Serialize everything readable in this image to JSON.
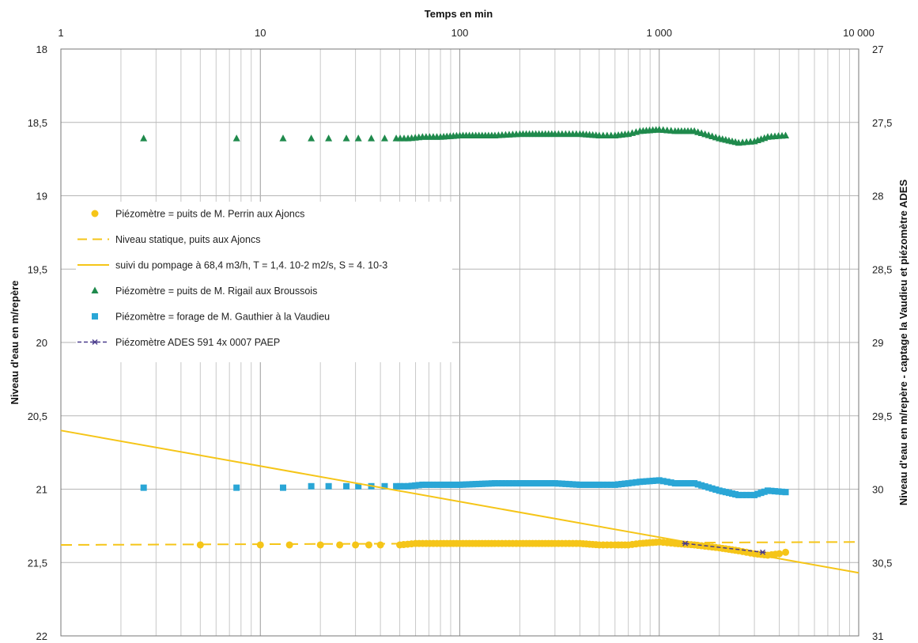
{
  "chart_data": {
    "type": "scatter",
    "title": "",
    "xlabel": "Temps en min",
    "ylabel_left": "Niveau d'eau en m/repère",
    "ylabel_right": "Niveau d'eau en m/repère - captage la Vaudieu et piézomètre ADES",
    "x_scale": "log",
    "xlim": [
      1,
      10000
    ],
    "x_ticks": [
      "1",
      "10",
      "100",
      "1 000",
      "10 000"
    ],
    "ylim_left": [
      22,
      18
    ],
    "y_ticks_left": [
      "18",
      "18,5",
      "19",
      "19,5",
      "20",
      "20,5",
      "21",
      "21,5",
      "22"
    ],
    "ylim_right": [
      31,
      27
    ],
    "y_ticks_right": [
      "27",
      "27,5",
      "28",
      "28,5",
      "29",
      "29,5",
      "30",
      "30,5",
      "31"
    ],
    "y_inverted": true,
    "grid": true,
    "legend_position": "left",
    "colors": {
      "perrin": "#f5c518",
      "static": "#f5c518",
      "fit": "#f5c518",
      "rigail": "#1f8a4c",
      "gauthier": "#2aa6d6",
      "ades": "#4a3c8c"
    },
    "series": [
      {
        "key": "perrin",
        "name": "Piézomètre = puits de M. Perrin aux Ajoncs",
        "marker": "circle",
        "axis": "left",
        "points": [
          [
            5,
            21.38
          ],
          [
            10,
            21.38
          ],
          [
            14,
            21.38
          ],
          [
            20,
            21.38
          ],
          [
            25,
            21.38
          ],
          [
            30,
            21.38
          ],
          [
            35,
            21.38
          ],
          [
            40,
            21.38
          ],
          [
            50,
            21.38
          ],
          [
            60,
            21.37
          ],
          [
            80,
            21.37
          ],
          [
            100,
            21.37
          ],
          [
            150,
            21.37
          ],
          [
            200,
            21.37
          ],
          [
            300,
            21.37
          ],
          [
            400,
            21.37
          ],
          [
            500,
            21.38
          ],
          [
            600,
            21.38
          ],
          [
            700,
            21.38
          ],
          [
            800,
            21.37
          ],
          [
            1000,
            21.36
          ],
          [
            1200,
            21.37
          ],
          [
            1500,
            21.38
          ],
          [
            2000,
            21.4
          ],
          [
            2500,
            21.42
          ],
          [
            3000,
            21.44
          ],
          [
            3500,
            21.45
          ],
          [
            4000,
            21.44
          ],
          [
            4300,
            21.43
          ]
        ]
      },
      {
        "key": "static",
        "name": "Niveau statique, puits aux Ajoncs",
        "marker": "dashed-line",
        "axis": "left",
        "points": [
          [
            1,
            21.38
          ],
          [
            10000,
            21.36
          ]
        ]
      },
      {
        "key": "fit",
        "name": "suivi du pompage à 68,4 m3/h, T = 1,4. 10-2 m2/s, S = 4. 10-3",
        "marker": "line",
        "axis": "left",
        "points": [
          [
            1,
            20.6
          ],
          [
            10000,
            21.57
          ]
        ]
      },
      {
        "key": "rigail",
        "name": "Piézomètre = puits de M. Rigail aux Broussois",
        "marker": "triangle",
        "axis": "left",
        "points": [
          [
            2.6,
            18.61
          ],
          [
            7.6,
            18.61
          ],
          [
            13,
            18.61
          ],
          [
            18,
            18.61
          ],
          [
            22,
            18.61
          ],
          [
            27,
            18.61
          ],
          [
            31,
            18.61
          ],
          [
            36,
            18.61
          ],
          [
            42,
            18.61
          ],
          [
            48,
            18.61
          ],
          [
            55,
            18.61
          ],
          [
            65,
            18.6
          ],
          [
            80,
            18.6
          ],
          [
            100,
            18.59
          ],
          [
            150,
            18.59
          ],
          [
            200,
            18.58
          ],
          [
            300,
            18.58
          ],
          [
            400,
            18.58
          ],
          [
            500,
            18.59
          ],
          [
            600,
            18.59
          ],
          [
            700,
            18.58
          ],
          [
            800,
            18.56
          ],
          [
            1000,
            18.55
          ],
          [
            1200,
            18.56
          ],
          [
            1500,
            18.56
          ],
          [
            2000,
            18.61
          ],
          [
            2500,
            18.64
          ],
          [
            3000,
            18.63
          ],
          [
            3500,
            18.6
          ],
          [
            4300,
            18.59
          ]
        ]
      },
      {
        "key": "gauthier",
        "name": "Piézomètre = forage de M. Gauthier à la Vaudieu",
        "marker": "square",
        "axis": "right",
        "points": [
          [
            2.6,
            29.99
          ],
          [
            7.6,
            29.99
          ],
          [
            13,
            29.99
          ],
          [
            18,
            29.98
          ],
          [
            22,
            29.98
          ],
          [
            27,
            29.98
          ],
          [
            31,
            29.98
          ],
          [
            36,
            29.98
          ],
          [
            42,
            29.98
          ],
          [
            48,
            29.98
          ],
          [
            55,
            29.98
          ],
          [
            65,
            29.97
          ],
          [
            80,
            29.97
          ],
          [
            100,
            29.97
          ],
          [
            150,
            29.96
          ],
          [
            200,
            29.96
          ],
          [
            300,
            29.96
          ],
          [
            400,
            29.97
          ],
          [
            500,
            29.97
          ],
          [
            600,
            29.97
          ],
          [
            700,
            29.96
          ],
          [
            800,
            29.95
          ],
          [
            1000,
            29.94
          ],
          [
            1200,
            29.96
          ],
          [
            1500,
            29.96
          ],
          [
            2000,
            30.01
          ],
          [
            2500,
            30.04
          ],
          [
            3000,
            30.04
          ],
          [
            3500,
            30.01
          ],
          [
            4300,
            30.02
          ]
        ]
      },
      {
        "key": "ades",
        "name": "Piézomètre ADES 591 4x 0007 PAEP",
        "marker": "star-line",
        "axis": "right",
        "points": [
          [
            1350,
            30.37
          ],
          [
            3300,
            30.43
          ]
        ]
      }
    ]
  }
}
